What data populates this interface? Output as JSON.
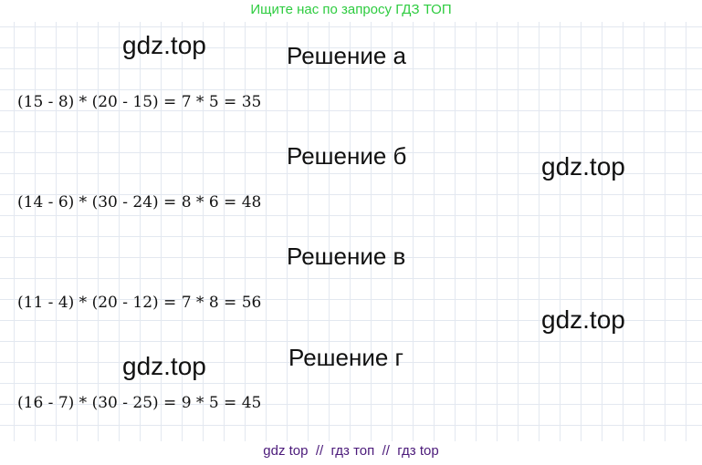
{
  "header_text": "Ищите нас по запросу ГДЗ ТОП",
  "watermark": "gdz.top",
  "solutions": [
    {
      "title": "Решение а",
      "equation": "(15 - 8) * (20 - 15) = 7 * 5 = 35"
    },
    {
      "title": "Решение б",
      "equation": "(14 - 6) * (30 - 24) = 8 * 6 = 48"
    },
    {
      "title": "Решение в",
      "equation": "(11 - 4) * (20 - 12) = 7 * 8 = 56"
    },
    {
      "title": "Решение г",
      "equation": "(16 - 7) * (30 - 25) = 9 * 5 = 45"
    }
  ],
  "footer_text": "gdz top  //  гдз топ  //  гдз top"
}
